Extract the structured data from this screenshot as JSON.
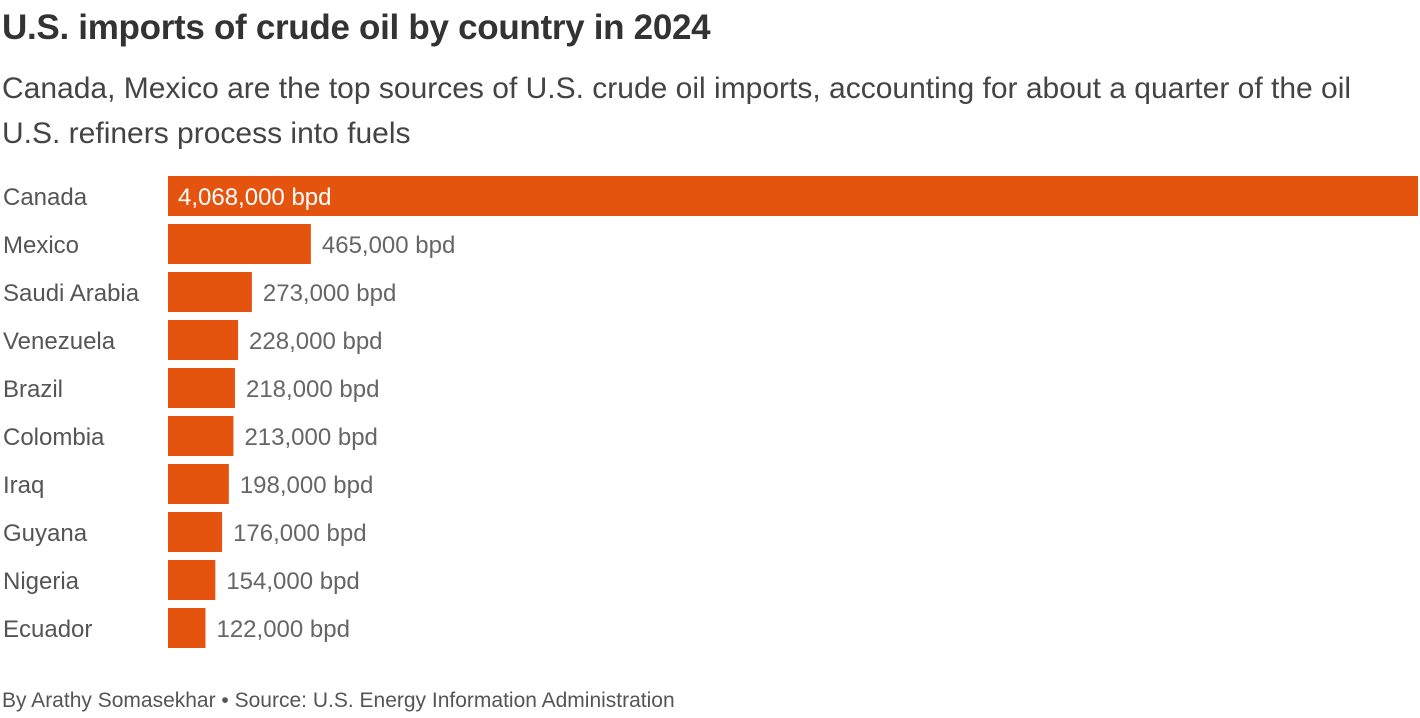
{
  "title": "U.S. imports of crude oil by country in 2024",
  "subtitle": "Canada, Mexico are the top sources of U.S. crude oil imports, accounting for about a quarter of the oil U.S. refiners process into fuels",
  "footer": "By Arathy Somasekhar • Source: U.S. Energy Information Administration",
  "chart_data": {
    "type": "bar",
    "orientation": "horizontal",
    "categories": [
      "Canada",
      "Mexico",
      "Saudi Arabia",
      "Venezuela",
      "Brazil",
      "Colombia",
      "Iraq",
      "Guyana",
      "Nigeria",
      "Ecuador"
    ],
    "values": [
      4068000,
      465000,
      273000,
      228000,
      218000,
      213000,
      198000,
      176000,
      154000,
      122000
    ],
    "data_labels": [
      "4,068,000 bpd",
      "465,000 bpd",
      "273,000 bpd",
      "228,000 bpd",
      "218,000 bpd",
      "213,000 bpd",
      "198,000 bpd",
      "176,000 bpd",
      "154,000 bpd",
      "122,000 bpd"
    ],
    "unit": "bpd",
    "xlim": [
      0,
      4068000
    ],
    "grid": false,
    "bar_color": "#e4540f"
  }
}
